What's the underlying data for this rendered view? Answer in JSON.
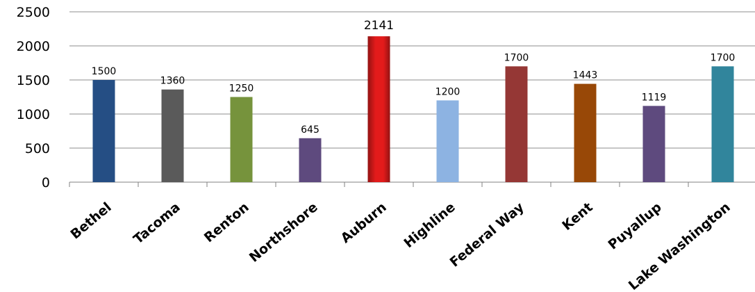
{
  "chart_data": {
    "type": "bar",
    "title": "",
    "xlabel": "",
    "ylabel": "",
    "ylim": [
      0,
      2500
    ],
    "yticks": [
      0,
      500,
      1000,
      1500,
      2000,
      2500
    ],
    "grid": true,
    "legend": false,
    "categories": [
      "Bethel",
      "Tacoma",
      "Renton",
      "Northshore",
      "Auburn",
      "Highline",
      "Federal Way",
      "Kent",
      "Puyallup",
      "Lake Washington"
    ],
    "values": [
      1500,
      1360,
      1250,
      645,
      2141,
      1200,
      1700,
      1443,
      1119,
      1700
    ],
    "colors": [
      "#254e84",
      "#5a5a5a",
      "#76933c",
      "#5e4a7e",
      "#e31b1b",
      "#8db3e2",
      "#953735",
      "#984807",
      "#5e4a7e",
      "#31859c"
    ],
    "highlighted": "Auburn"
  }
}
